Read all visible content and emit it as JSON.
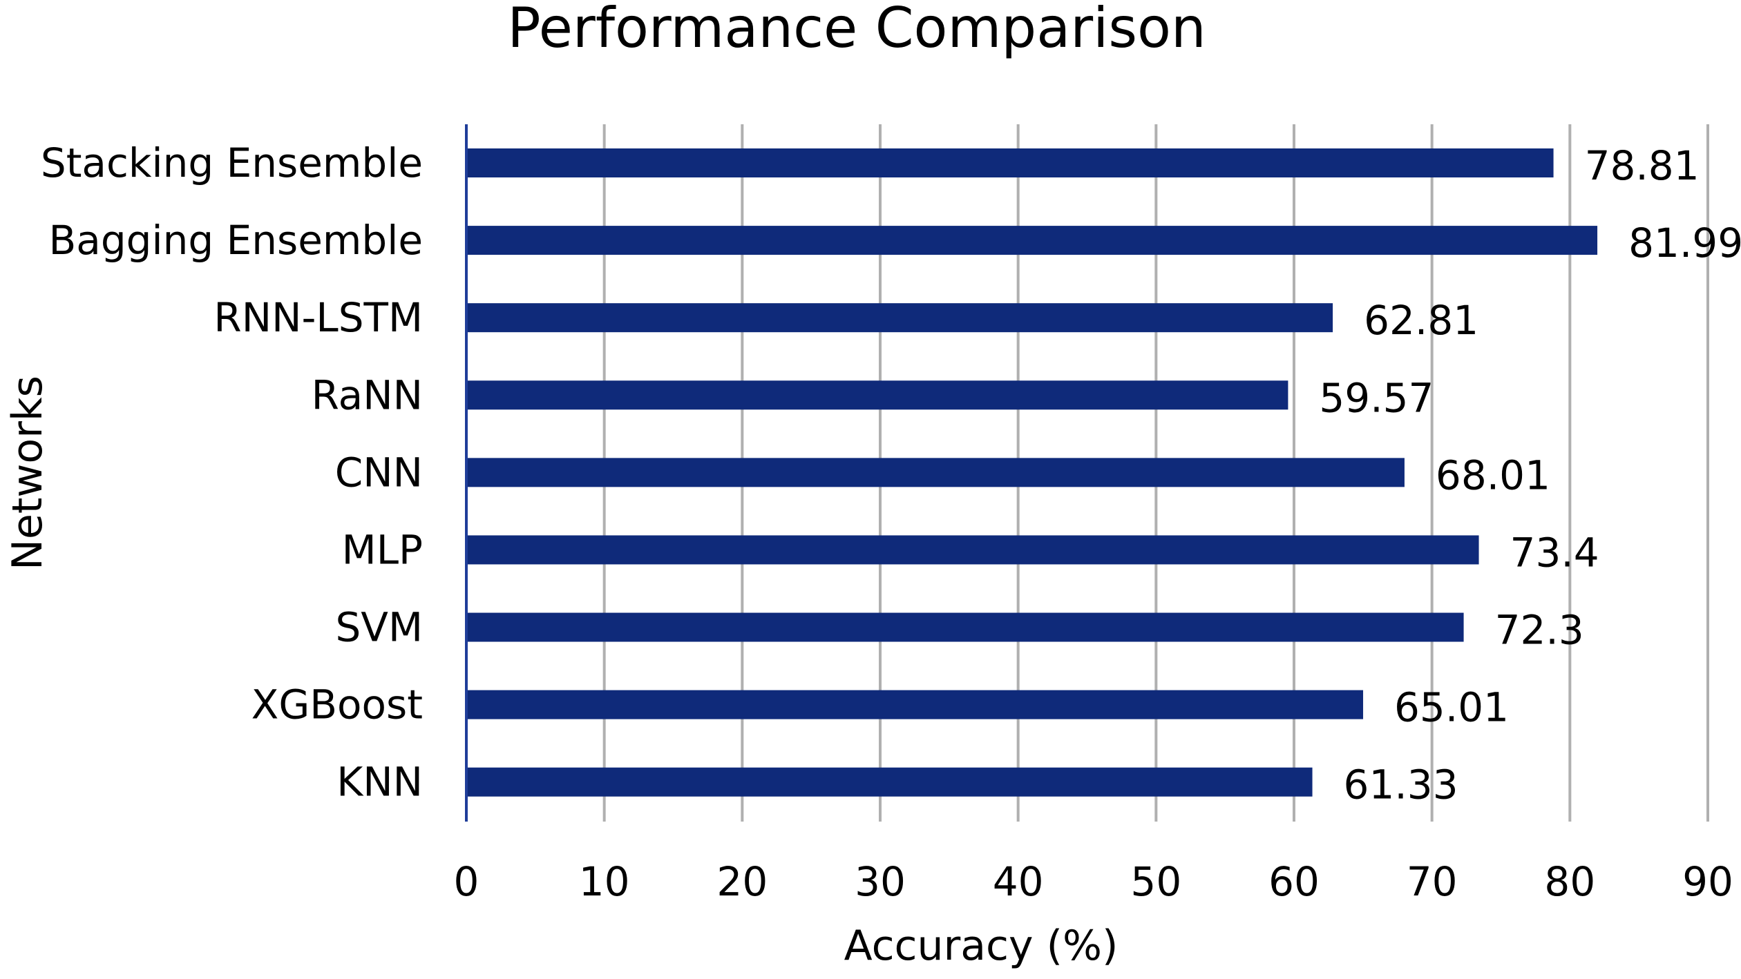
{
  "chart_data": {
    "type": "bar",
    "orientation": "horizontal",
    "title": "Performance Comparison",
    "xlabel": "Accuracy (%)",
    "ylabel": "Networks",
    "categories": [
      "Stacking Ensemble",
      "Bagging Ensemble",
      "RNN-LSTM",
      "RaNN",
      "CNN",
      "MLP",
      "SVM",
      "XGBoost",
      "KNN"
    ],
    "values": [
      78.81,
      81.99,
      62.81,
      59.57,
      68.01,
      73.4,
      72.3,
      65.01,
      61.33
    ],
    "value_labels": [
      "78.81",
      "81.99",
      "62.81",
      "59.57",
      "68.01",
      "73.4",
      "72.3",
      "65.01",
      "61.33"
    ],
    "xlim": [
      0,
      90
    ],
    "xticks": [
      "0",
      "10",
      "20",
      "30",
      "40",
      "50",
      "60",
      "70",
      "80",
      "90"
    ],
    "grid": "vertical",
    "legend": "none",
    "bar_color": "#0f2a7a",
    "grid_color": "#b0b0b0",
    "axis_color": "#1f3d99"
  }
}
